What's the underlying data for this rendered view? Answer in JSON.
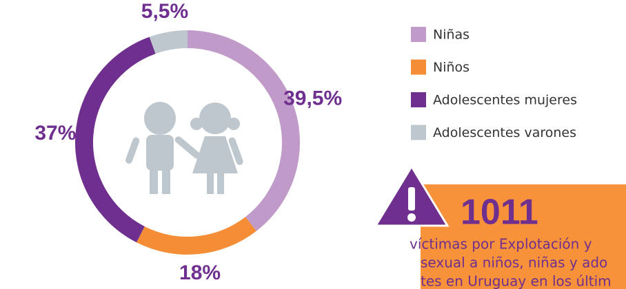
{
  "chart_data": {
    "type": "donut",
    "categories": [
      "Niñas",
      "Niños",
      "Adolescentes mujeres",
      "Adolescentes varones"
    ],
    "values": [
      39.5,
      18,
      37,
      5.5
    ],
    "value_labels": [
      "39,5%",
      "18%",
      "37%",
      "5,5%"
    ],
    "colors": [
      "#c09bc9",
      "#f48d36",
      "#6f2f8f",
      "#bec7cd"
    ],
    "legend": "right",
    "callout": {
      "number": 1011,
      "lines": [
        "víctimas por Explotación y",
        "sexual a niños, niñas y ado",
        "tes en Uruguay en los últim"
      ]
    }
  }
}
